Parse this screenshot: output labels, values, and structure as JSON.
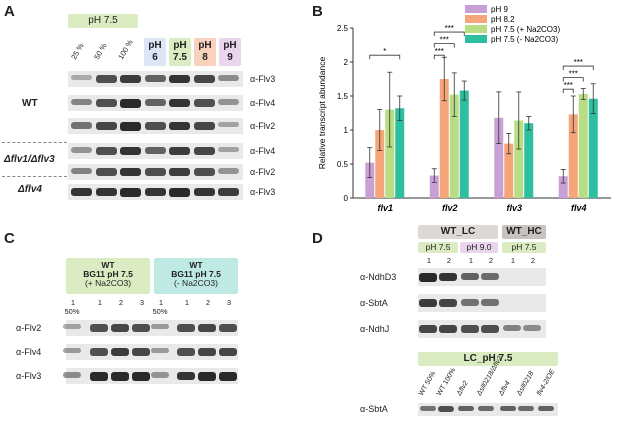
{
  "panelA": {
    "letter": "A",
    "ph_header": "pH 7.5",
    "lanes": [
      "25 %",
      "50 %",
      "100 %"
    ],
    "ph_boxes": [
      {
        "l1": "pH",
        "l2": "6",
        "color": "#dde6f7"
      },
      {
        "l1": "pH",
        "l2": "7.5",
        "color": "#dcecc2"
      },
      {
        "l1": "pH",
        "l2": "8",
        "color": "#f9d2bd"
      },
      {
        "l1": "pH",
        "l2": "9",
        "color": "#ead6ec"
      }
    ],
    "strains": [
      "WT",
      "Δflv1/Δflv3",
      "Δflv4"
    ],
    "antibodies": [
      "α-Flv3",
      "α-Flv4",
      "α-Flv2",
      "α-Flv4",
      "α-Flv2",
      "α-Flv3"
    ]
  },
  "panelB": {
    "letter": "B",
    "ylabel": "Relative transcript abundance",
    "legend": [
      "pH 9",
      "pH 8.2",
      "pH 7.5 (+ Na2CO3)",
      "pH 7.5 (- Na2CO3)"
    ],
    "sig_flv1": "*",
    "sig_star3": "***"
  },
  "chart_data": {
    "type": "bar",
    "categories": [
      "flv1",
      "flv2",
      "flv3",
      "flv4"
    ],
    "ylim": [
      0,
      2.5
    ],
    "yticks": [
      "0",
      "0.5",
      "1",
      "1.5",
      "2",
      "2.5"
    ],
    "ylabel": "Relative transcript abundance",
    "series": [
      {
        "name": "pH 9",
        "color": "#c9a0d6",
        "values": [
          0.52,
          0.33,
          1.18,
          0.32
        ],
        "err": [
          0.22,
          0.1,
          0.38,
          0.1
        ]
      },
      {
        "name": "pH 8.2",
        "color": "#f5a57a",
        "values": [
          1.0,
          1.75,
          0.8,
          1.23
        ],
        "err": [
          0.3,
          0.32,
          0.15,
          0.27
        ]
      },
      {
        "name": "pH 7.5 (+ Na2CO3)",
        "color": "#b9dd84",
        "values": [
          1.3,
          1.52,
          1.14,
          1.53
        ],
        "err": [
          0.55,
          0.32,
          0.42,
          0.08
        ]
      },
      {
        "name": "pH 7.5 (- Na2CO3)",
        "color": "#2dbfa0",
        "values": [
          1.32,
          1.58,
          1.1,
          1.46
        ],
        "err": [
          0.18,
          0.14,
          0.1,
          0.22
        ]
      }
    ]
  },
  "panelC": {
    "letter": "C",
    "box1_l1": "WT",
    "box1_l2": "BG11 pH 7.5",
    "box1_l3": "(+ Na2CO3)",
    "box2_l1": "WT",
    "box2_l2": "BG11 pH 7.5",
    "box2_l3": "(- Na2CO3)",
    "lanes": [
      "1",
      "1",
      "2",
      "3",
      "1",
      "1",
      "2",
      "3"
    ],
    "lane_sub": "50%",
    "antibodies": [
      "α-Flv2",
      "α-Flv4",
      "α-Flv3"
    ]
  },
  "panelD": {
    "letter": "D",
    "wt_lc": "WT_LC",
    "wt_hc": "WT_HC",
    "ph75": "pH 7.5",
    "ph90": "pH 9.0",
    "ph75b": "pH 7.5",
    "lanes": [
      "1",
      "2",
      "1",
      "2",
      "1",
      "2"
    ],
    "antibodies": [
      "α-NdhD3",
      "α-SbtA",
      "α-NdhJ"
    ],
    "lc_header": "LC_pH 7.5",
    "bottom_lanes": [
      "WT 50%",
      "WT 100%",
      "Δflv2",
      "Δsll0218/Δflv2",
      "Δflv4",
      "Δsll0218",
      "flv4-2/OE"
    ],
    "bottom_ab": "α-SbtA"
  }
}
